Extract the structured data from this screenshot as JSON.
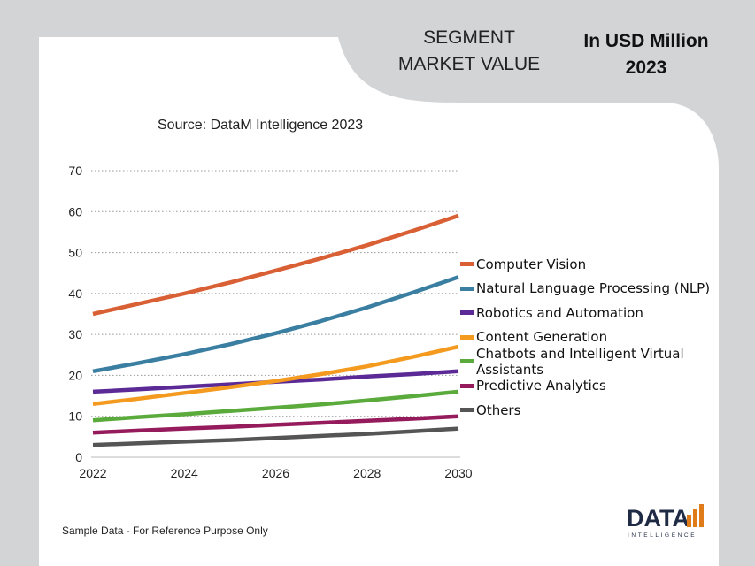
{
  "header": {
    "segment_line1": "SEGMENT",
    "segment_line2": "MARKET VALUE",
    "unit_line1": "In USD Million",
    "unit_line2": "2023"
  },
  "source_text": "Source: DataM Intelligence 2023",
  "footer_note": "Sample Data - For Reference Purpose Only",
  "logo": {
    "word": "DATA",
    "sub": "INTELLIGENCE"
  },
  "chart_data": {
    "type": "line",
    "title": "",
    "xlabel": "",
    "ylabel": "",
    "x": [
      2022,
      2023,
      2024,
      2025,
      2026,
      2027,
      2028,
      2029,
      2030
    ],
    "x_ticks": [
      "2022",
      "2024",
      "2026",
      "2028",
      "2030"
    ],
    "y_ticks": [
      "0",
      "10",
      "20",
      "30",
      "40",
      "50",
      "60",
      "70"
    ],
    "xlim": [
      2022,
      2030
    ],
    "ylim": [
      0,
      70
    ],
    "grid": "horizontal-dotted",
    "legend_position": "right",
    "series": [
      {
        "name": "Computer Vision",
        "color": "#d95f35",
        "values": [
          35,
          37.5,
          40,
          42.7,
          45.6,
          48.6,
          51.8,
          55.3,
          59
        ]
      },
      {
        "name": "Natural Language Processing (NLP)",
        "color": "#3a7ea1",
        "values": [
          21,
          23,
          25.2,
          27.6,
          30.3,
          33.3,
          36.6,
          40.2,
          44
        ]
      },
      {
        "name": "Robotics and Automation",
        "color": "#5b2a96",
        "values": [
          16,
          16.6,
          17.2,
          17.8,
          18.4,
          19,
          19.7,
          20.3,
          21
        ]
      },
      {
        "name": "Content Generation",
        "color": "#f39a1f",
        "values": [
          13,
          14.3,
          15.7,
          17.1,
          18.6,
          20.3,
          22.2,
          24.5,
          27
        ]
      },
      {
        "name": "Chatbots and Intelligent Virtual Assistants",
        "color": "#5aab3c",
        "values": [
          9,
          9.8,
          10.5,
          11.3,
          12.1,
          12.9,
          13.9,
          14.9,
          16
        ]
      },
      {
        "name": "Predictive Analytics",
        "color": "#951b5c",
        "values": [
          6,
          6.5,
          7,
          7.4,
          7.9,
          8.4,
          8.9,
          9.4,
          10
        ]
      },
      {
        "name": "Others",
        "color": "#555555",
        "values": [
          3,
          3.4,
          3.8,
          4.2,
          4.7,
          5.2,
          5.7,
          6.3,
          7
        ]
      }
    ]
  }
}
